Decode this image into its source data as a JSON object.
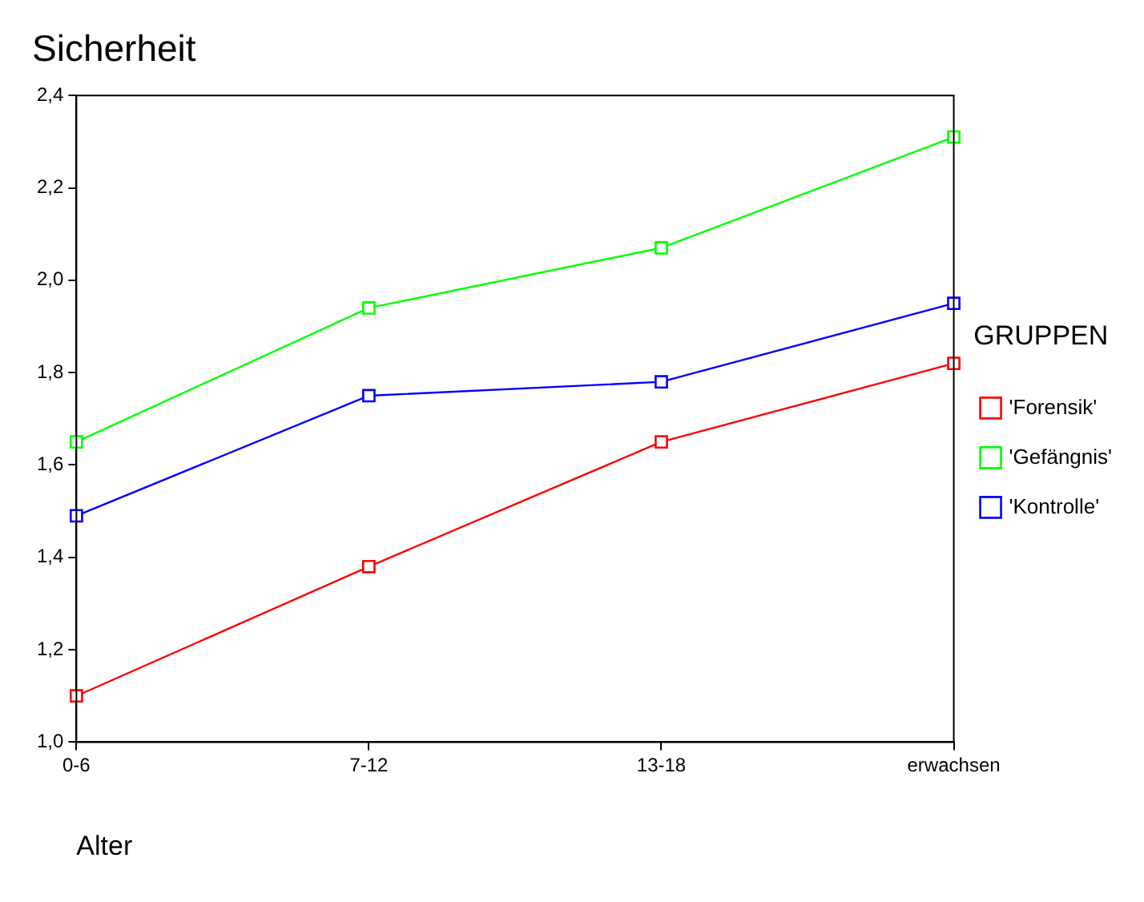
{
  "chart_data": {
    "type": "line",
    "title": "Sicherheit",
    "xlabel": "Alter",
    "legend_title": "GRUPPEN",
    "categories": [
      "0-6",
      "7-12",
      "13-18",
      "erwachsen"
    ],
    "series": [
      {
        "name": "'Forensik'",
        "color": "#ff0000",
        "values": [
          1.1,
          1.38,
          1.65,
          1.82
        ]
      },
      {
        "name": "'Gefängnis'",
        "color": "#00ff00",
        "values": [
          1.65,
          1.94,
          2.07,
          2.31
        ]
      },
      {
        "name": "'Kontrolle'",
        "color": "#0000ff",
        "values": [
          1.49,
          1.75,
          1.78,
          1.95
        ]
      }
    ],
    "ylim": [
      1.0,
      2.4
    ],
    "yticks": [
      {
        "value": 1.0,
        "label": "1,0"
      },
      {
        "value": 1.2,
        "label": "1,2"
      },
      {
        "value": 1.4,
        "label": "1,4"
      },
      {
        "value": 1.6,
        "label": "1,6"
      },
      {
        "value": 1.8,
        "label": "1,8"
      },
      {
        "value": 2.0,
        "label": "2,0"
      },
      {
        "value": 2.2,
        "label": "2,2"
      },
      {
        "value": 2.4,
        "label": "2,4"
      }
    ],
    "grid": false,
    "legend": "right",
    "marker": "square",
    "line_style": "solid"
  }
}
